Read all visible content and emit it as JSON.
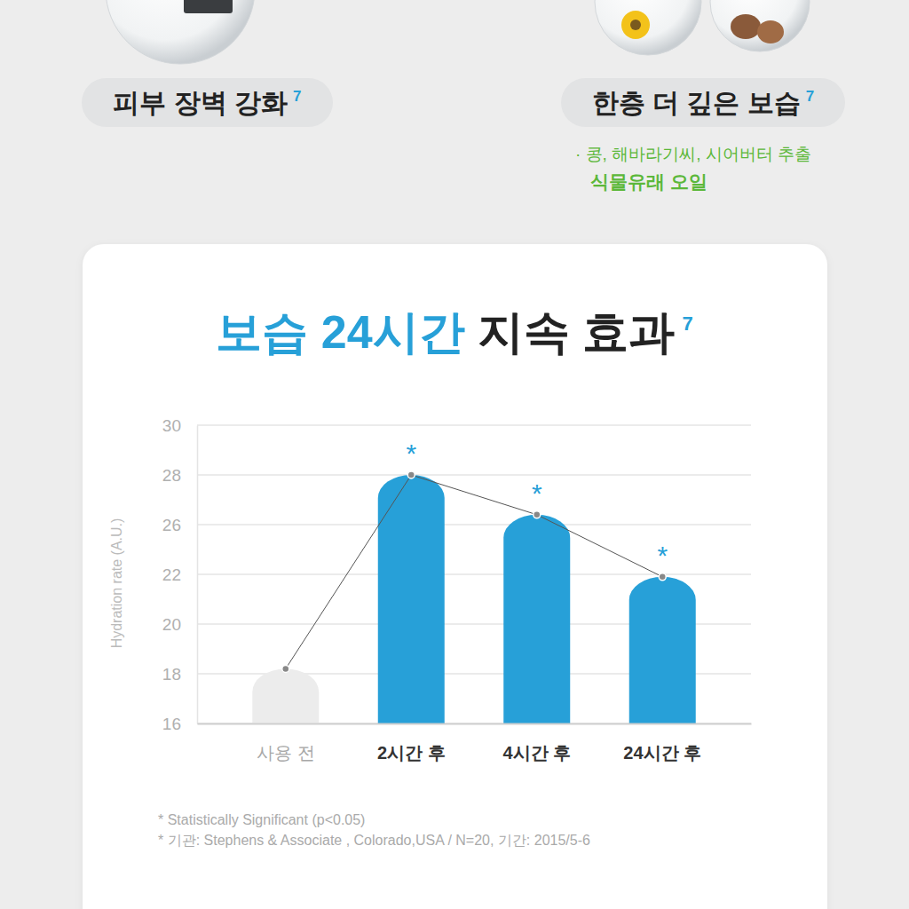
{
  "page": {
    "features": [
      {
        "label": "피부 장벽 강화",
        "note": "7"
      },
      {
        "label": "한층 더 깊은 보습",
        "note": "7",
        "detail": "· 콩, 해바라기씨, 시어버터 추출",
        "detail_emphasis": "식물유래 오일"
      }
    ]
  },
  "chart_data": {
    "type": "bar",
    "title": "보습 24시간 지속 효과",
    "title_note": "7",
    "y_label": "Hydration rate (A.U.)",
    "categories": [
      "사용 전",
      "2시간 후",
      "4시간 후",
      "24시간 후"
    ],
    "values": [
      18.2,
      28,
      26.4,
      21.9
    ],
    "colors": [
      "#ececec",
      "#27a0d8",
      "#27a0d8",
      "#27a0d8"
    ],
    "marker": "circle",
    "ylim": [
      16,
      30
    ],
    "yticks": [
      16,
      18,
      20,
      22,
      26,
      28,
      30
    ],
    "grid": true,
    "annotations": [
      {
        "x": "2시간 후",
        "text": "*"
      },
      {
        "x": "4시간 후",
        "text": "*"
      },
      {
        "x": "24시간 후",
        "text": "*"
      }
    ],
    "notes": [
      "* Statistically Significant (p<0.05)",
      "* 기관: Stephens & Associate , Colorado,USA / N=20, 기간: 2015/5-6"
    ]
  }
}
